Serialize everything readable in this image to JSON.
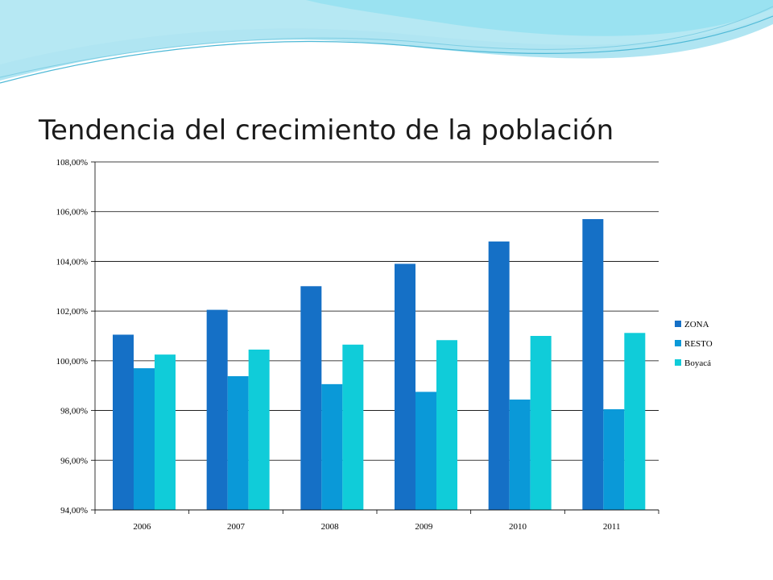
{
  "slide": {
    "title": "Tendencia del crecimiento de la población"
  },
  "theme": {
    "background": "#ffffff",
    "wave_light": "#b7e8f3",
    "wave_mid": "#6fd0e8",
    "wave_line": "#4fb9d6",
    "gridline": "#000000"
  },
  "chart_data": {
    "type": "bar",
    "title": "Tendencia del crecimiento de la población",
    "categories": [
      "2006",
      "2007",
      "2008",
      "2009",
      "2010",
      "2011"
    ],
    "series": [
      {
        "name": "ZONA",
        "color": "#1570c6",
        "values": [
          101.05,
          102.05,
          103.0,
          103.9,
          104.8,
          105.7
        ]
      },
      {
        "name": "RESTO",
        "color": "#0a99d8",
        "values": [
          99.7,
          99.38,
          99.06,
          98.75,
          98.44,
          98.05
        ]
      },
      {
        "name": "Boyacá",
        "color": "#10ccd9",
        "values": [
          100.25,
          100.45,
          100.65,
          100.83,
          101.0,
          101.12
        ]
      }
    ],
    "yticks": [
      "94,00%",
      "96,00%",
      "98,00%",
      "100,00%",
      "102,00%",
      "104,00%",
      "106,00%",
      "108,00%"
    ],
    "ylim": [
      94,
      108
    ],
    "ytick_step": 2,
    "xlabel": "",
    "ylabel": "",
    "grid": true,
    "legend_position": "right"
  }
}
